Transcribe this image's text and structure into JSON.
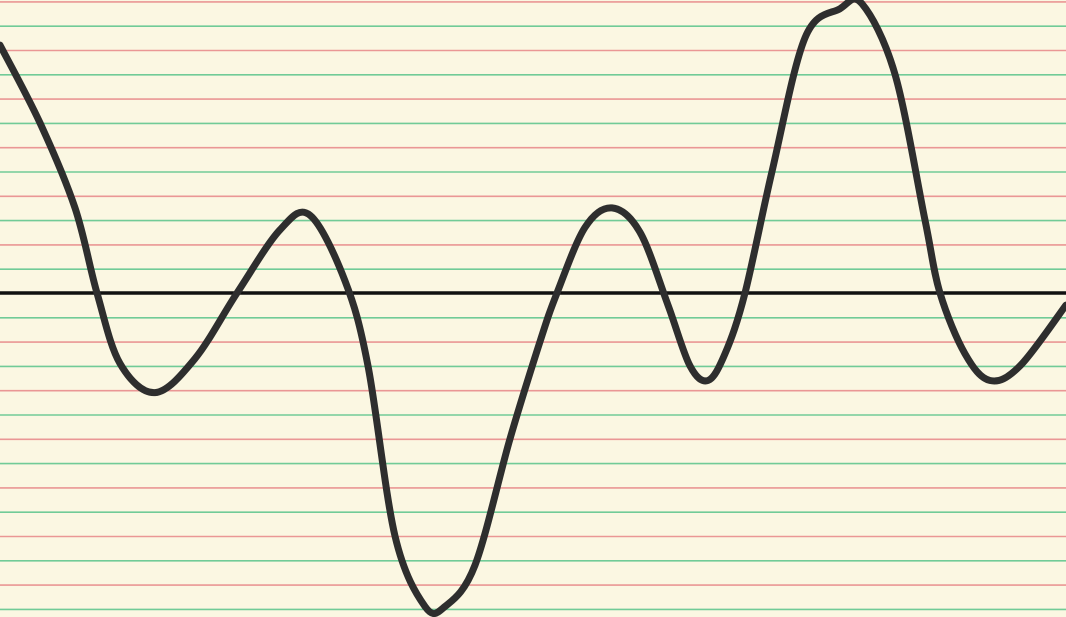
{
  "chart_data": {
    "type": "line",
    "title": "",
    "xlabel": "",
    "ylabel": "",
    "grid": true,
    "legend": "none",
    "background_color": "#fbf7e2",
    "ruling_colors": [
      "#e98d8d",
      "#63c78f"
    ],
    "axis_color": "#111111",
    "line_color": "#2e2e2e",
    "xlim": [
      0,
      1066
    ],
    "ylim": [
      -13,
      12
    ],
    "series": [
      {
        "x": [
          0,
          40,
          75,
          97,
          120,
          155,
          195,
          237,
          280,
          310,
          345,
          368,
          395,
          425,
          445,
          475,
          510,
          540,
          557,
          585,
          612,
          640,
          668,
          690,
          708,
          725,
          745,
          772,
          805,
          840,
          862,
          895,
          925,
          940,
          965,
          990,
          1020,
          1066
        ],
        "y": [
          10.2,
          7.0,
          3.5,
          0,
          -2.9,
          -4.1,
          -2.7,
          0,
          2.6,
          3.2,
          0.5,
          -3.0,
          -10.0,
          -12.9,
          -12.9,
          -11.2,
          -6.0,
          -2.0,
          0,
          2.7,
          3.5,
          2.5,
          -0.5,
          -3.0,
          -3.6,
          -2.5,
          0,
          5.0,
          10.5,
          11.7,
          11.9,
          9.0,
          3.0,
          0,
          -2.5,
          -3.6,
          -3.0,
          -0.5
        ]
      }
    ]
  }
}
